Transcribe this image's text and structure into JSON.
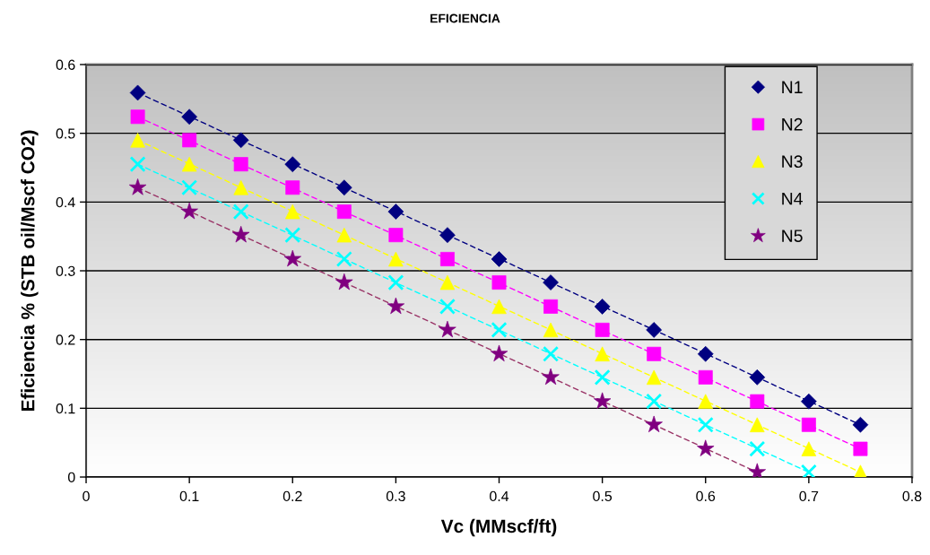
{
  "chart_data": {
    "type": "scatter",
    "title": "EFICIENCIA",
    "xlabel": "Vc (MMscf/ft)",
    "ylabel": "Eficiencia % (STB oil/Mscf CO2)",
    "x": [
      0.05,
      0.1,
      0.15,
      0.2,
      0.25,
      0.3,
      0.35,
      0.4,
      0.45,
      0.5,
      0.55,
      0.6,
      0.65,
      0.7,
      0.75
    ],
    "series": [
      {
        "name": "N1",
        "color": "#000080",
        "marker": "diamond",
        "values": [
          0.559,
          0.524,
          0.49,
          0.455,
          0.421,
          0.386,
          0.352,
          0.317,
          0.283,
          0.248,
          0.214,
          0.179,
          0.145,
          0.11,
          0.076
        ]
      },
      {
        "name": "N2",
        "color": "#ff00ff",
        "marker": "square",
        "values": [
          0.524,
          0.49,
          0.455,
          0.421,
          0.386,
          0.352,
          0.317,
          0.283,
          0.248,
          0.214,
          0.179,
          0.145,
          0.11,
          0.076,
          0.041
        ]
      },
      {
        "name": "N3",
        "color": "#ffff00",
        "marker": "triangle",
        "values": [
          0.49,
          0.455,
          0.421,
          0.386,
          0.352,
          0.317,
          0.283,
          0.248,
          0.214,
          0.179,
          0.145,
          0.11,
          0.076,
          0.041,
          0.007
        ]
      },
      {
        "name": "N4",
        "color": "#00ffff",
        "marker": "cross",
        "values": [
          0.455,
          0.421,
          0.386,
          0.352,
          0.317,
          0.283,
          0.248,
          0.214,
          0.179,
          0.145,
          0.11,
          0.076,
          0.041,
          0.007,
          null
        ]
      },
      {
        "name": "N5",
        "color": "#800080",
        "marker": "star",
        "values": [
          0.421,
          0.386,
          0.352,
          0.317,
          0.283,
          0.248,
          0.214,
          0.179,
          0.145,
          0.11,
          0.076,
          0.041,
          0.007,
          null,
          null
        ]
      },
      {
        "type": "line",
        "color": "#000080",
        "line_style": "dashed",
        "marker": "none",
        "x": [
          0.05,
          0.75
        ],
        "values": [
          0.559,
          0.076
        ]
      },
      {
        "type": "line",
        "color": "#ff00ff",
        "line_style": "dashed",
        "marker": "none",
        "x": [
          0.05,
          0.75
        ],
        "values": [
          0.524,
          0.041
        ]
      },
      {
        "type": "line",
        "color": "#ffff00",
        "line_style": "dashed",
        "marker": "none",
        "x": [
          0.05,
          0.75
        ],
        "values": [
          0.49,
          0.007
        ]
      },
      {
        "type": "line",
        "color": "#00ffff",
        "line_style": "dashed",
        "marker": "none",
        "x": [
          0.05,
          0.7
        ],
        "values": [
          0.455,
          0.007
        ]
      },
      {
        "type": "line",
        "color": "#993366",
        "line_style": "dashed",
        "marker": "none",
        "x": [
          0.05,
          0.65
        ],
        "values": [
          0.421,
          0.007
        ]
      }
    ],
    "xlim": [
      0,
      0.8
    ],
    "xticks": [
      0,
      0.1,
      0.2,
      0.3,
      0.4,
      0.5,
      0.6,
      0.7,
      0.8
    ],
    "ylim": [
      0,
      0.6
    ],
    "yticks": [
      0,
      0.1,
      0.2,
      0.3,
      0.4,
      0.5,
      0.6
    ],
    "grid": "y",
    "legend": "top right"
  }
}
